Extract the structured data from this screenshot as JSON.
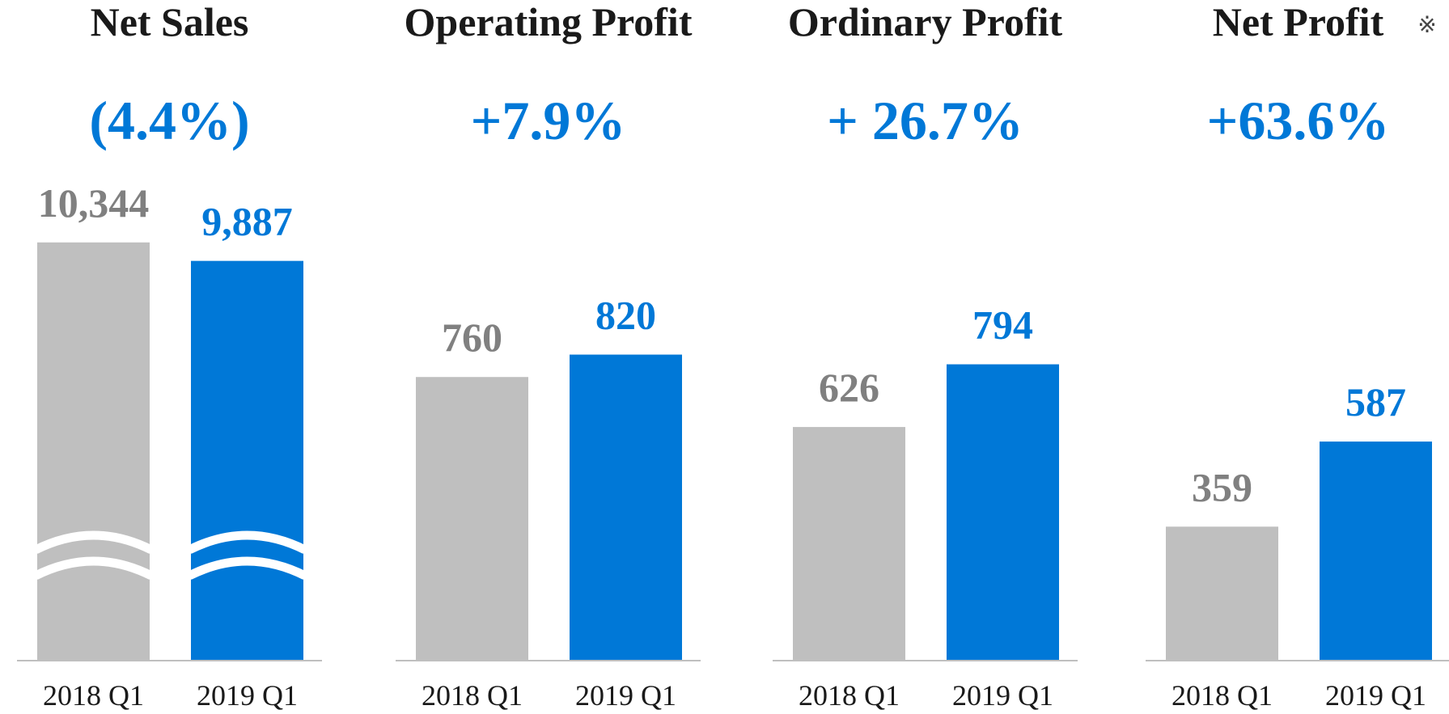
{
  "chart_data": [
    {
      "type": "bar",
      "title": "Net Sales",
      "annotation": "(4.4%)",
      "categories": [
        "2018 Q1",
        "2019 Q1"
      ],
      "values": [
        10344,
        9887
      ],
      "value_labels": [
        "10,344",
        "9,887"
      ],
      "colors": [
        "#bfbfbf",
        "#0078d7"
      ],
      "label_colors": [
        "#808080",
        "#0078d7"
      ],
      "ylim": [
        0,
        12000
      ],
      "axis_break": true
    },
    {
      "type": "bar",
      "title": "Operating Profit",
      "annotation": "+7.9%",
      "categories": [
        "2018 Q1",
        "2019 Q1"
      ],
      "values": [
        760,
        820
      ],
      "colors": [
        "#bfbfbf",
        "#0078d7"
      ],
      "label_colors": [
        "#808080",
        "#0078d7"
      ],
      "ylim": [
        0,
        1300
      ],
      "axis_break": false
    },
    {
      "type": "bar",
      "title": "Ordinary Profit",
      "annotation": "+ 26.7%",
      "categories": [
        "2018 Q1",
        "2019 Q1"
      ],
      "values": [
        626,
        794
      ],
      "colors": [
        "#bfbfbf",
        "#0078d7"
      ],
      "label_colors": [
        "#808080",
        "#0078d7"
      ],
      "ylim": [
        0,
        1300
      ],
      "axis_break": false
    },
    {
      "type": "bar",
      "title": "Net Profit",
      "title_note": "※",
      "annotation": "+63.6%",
      "categories": [
        "2018 Q1",
        "2019 Q1"
      ],
      "values": [
        359,
        587
      ],
      "colors": [
        "#bfbfbf",
        "#0078d7"
      ],
      "label_colors": [
        "#808080",
        "#0078d7"
      ],
      "ylim": [
        0,
        1300
      ],
      "axis_break": false
    }
  ]
}
